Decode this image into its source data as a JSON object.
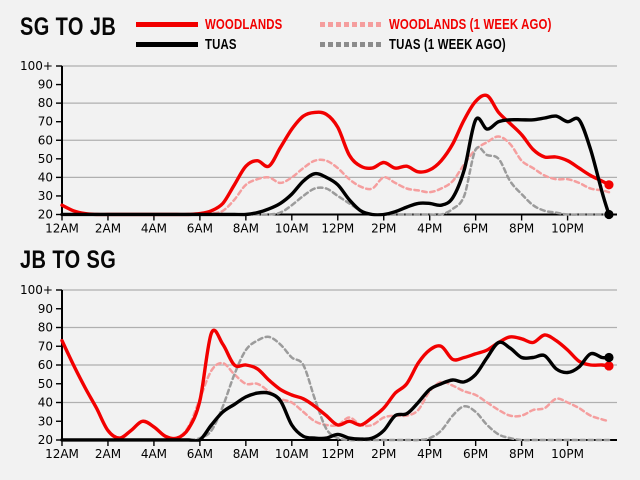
{
  "page": {
    "background": "#f2f2f2",
    "grid_color": "#b0b0b0",
    "axis_color": "#000000"
  },
  "legend": {
    "items": [
      {
        "label": "WOODLANDS",
        "line_color": "#f20000",
        "label_color": "#f20000",
        "style": "solid"
      },
      {
        "label": "WOODLANDS (1 WEEK AGO)",
        "line_color": "#f59e9e",
        "label_color": "#f20000",
        "style": "dashed"
      },
      {
        "label": "TUAS",
        "line_color": "#000000",
        "label_color": "#000000",
        "style": "solid"
      },
      {
        "label": "TUAS (1 WEEK AGO)",
        "line_color": "#8c8c8c",
        "label_color": "#000000",
        "style": "dashed"
      }
    ]
  },
  "chart_data": [
    {
      "type": "line",
      "title": "SG TO JB",
      "xlim": [
        0,
        24.15
      ],
      "ylim": [
        20,
        100
      ],
      "grid": true,
      "grid_values": [
        40,
        60,
        80,
        100
      ],
      "x_tick_hours": [
        0,
        2,
        4,
        6,
        8,
        10,
        12,
        14,
        16,
        18,
        20,
        22
      ],
      "x_tick_labels": [
        "12AM",
        "2AM",
        "4AM",
        "6AM",
        "8AM",
        "10AM",
        "12PM",
        "2PM",
        "4PM",
        "6PM",
        "8PM",
        "10PM"
      ],
      "y_ticks": [
        20,
        30,
        40,
        50,
        60,
        70,
        80,
        90,
        100
      ],
      "y_tick_labels": [
        "20",
        "30",
        "40",
        "50",
        "60",
        "70",
        "80",
        "90",
        "100+"
      ],
      "x_hours": [
        0,
        0.5,
        1,
        1.5,
        2,
        2.5,
        3,
        3.5,
        4,
        4.5,
        5,
        5.5,
        6,
        6.5,
        7,
        7.5,
        8,
        8.5,
        9,
        9.5,
        10,
        10.5,
        11,
        11.5,
        12,
        12.5,
        13,
        13.5,
        14,
        14.5,
        15,
        15.5,
        16,
        16.5,
        17,
        17.5,
        18,
        18.5,
        19,
        19.5,
        20,
        20.5,
        21,
        21.5,
        22,
        22.5,
        23,
        23.5,
        23.8
      ],
      "series": [
        {
          "name": "WOODLANDS",
          "color": "#f20000",
          "style": "solid",
          "end_dot": true,
          "values": [
            25,
            22,
            20.5,
            20,
            20,
            20,
            20,
            20,
            20,
            20,
            20,
            20,
            20.5,
            22,
            26,
            36,
            46,
            49,
            46,
            56,
            66,
            73,
            75,
            74,
            67,
            52,
            46,
            45,
            48,
            45,
            46,
            43,
            44,
            49,
            58,
            71,
            81,
            84,
            75,
            69,
            63,
            55,
            51,
            51,
            49,
            45,
            41,
            38,
            36
          ]
        },
        {
          "name": "TUAS",
          "color": "#000000",
          "style": "solid",
          "end_dot": true,
          "values": [
            20,
            20,
            20,
            20,
            20,
            20,
            20,
            20,
            20,
            20,
            20,
            20,
            20,
            20,
            20,
            20,
            20,
            21,
            23,
            26,
            31,
            38,
            42,
            40,
            36,
            28,
            22,
            20,
            20,
            21.5,
            24,
            26,
            26,
            25,
            29,
            44,
            71,
            66,
            70,
            71,
            71,
            71,
            72,
            73,
            70,
            71,
            55,
            32,
            20
          ]
        },
        {
          "name": "WOODLANDS (1 WEEK AGO)",
          "color": "#f59e9e",
          "style": "dashed",
          "end_dot": false,
          "values": [
            20,
            20,
            20,
            20,
            20,
            20,
            20,
            20,
            20,
            20,
            20,
            20,
            20,
            20.5,
            22,
            28,
            36,
            39,
            40,
            37,
            40,
            45,
            49,
            49,
            45,
            39,
            35,
            34,
            40,
            37,
            34,
            33,
            32,
            34,
            38,
            47,
            55,
            59,
            62,
            58,
            49,
            45,
            41,
            39,
            39,
            37,
            34,
            33,
            32
          ]
        },
        {
          "name": "TUAS (1 WEEK AGO)",
          "color": "#9b9b9b",
          "style": "dashed",
          "end_dot": false,
          "values": [
            20,
            20,
            20,
            20,
            20,
            20,
            20,
            20,
            20,
            20,
            20,
            20,
            20,
            20,
            20,
            20,
            20,
            20,
            20,
            21,
            25,
            30,
            34,
            34,
            30,
            26,
            22,
            20,
            20,
            20,
            20,
            20,
            20,
            20,
            23,
            30,
            55,
            52,
            50,
            38,
            31,
            25,
            22,
            21,
            20,
            20,
            20,
            20,
            20
          ]
        }
      ]
    },
    {
      "type": "line",
      "title": "JB TO SG",
      "xlim": [
        0,
        24.15
      ],
      "ylim": [
        20,
        100
      ],
      "grid": true,
      "grid_values": [
        40,
        60,
        80,
        100
      ],
      "x_tick_hours": [
        0,
        2,
        4,
        6,
        8,
        10,
        12,
        14,
        16,
        18,
        20,
        22
      ],
      "x_tick_labels": [
        "12AM",
        "2AM",
        "4AM",
        "6AM",
        "8AM",
        "10AM",
        "12PM",
        "2PM",
        "4PM",
        "6PM",
        "8PM",
        "10PM"
      ],
      "y_ticks": [
        20,
        30,
        40,
        50,
        60,
        70,
        80,
        90,
        100
      ],
      "y_tick_labels": [
        "20",
        "30",
        "40",
        "50",
        "60",
        "70",
        "80",
        "90",
        "100+"
      ],
      "x_hours": [
        0,
        0.5,
        1,
        1.5,
        2,
        2.5,
        3,
        3.5,
        4,
        4.5,
        5,
        5.5,
        6,
        6.5,
        7,
        7.5,
        8,
        8.5,
        9,
        9.5,
        10,
        10.5,
        11,
        11.5,
        12,
        12.5,
        13,
        13.5,
        14,
        14.5,
        15,
        15.5,
        16,
        16.5,
        17,
        17.5,
        18,
        18.5,
        19,
        19.5,
        20,
        20.5,
        21,
        21.5,
        22,
        22.5,
        23,
        23.5,
        23.8
      ],
      "series": [
        {
          "name": "WOODLANDS",
          "color": "#f20000",
          "style": "solid",
          "end_dot": true,
          "values": [
            73,
            60,
            48,
            37,
            25,
            21,
            25,
            30,
            27,
            22,
            21,
            26,
            41,
            77,
            71,
            60,
            60,
            58,
            52,
            47,
            44,
            42,
            38,
            33,
            28,
            30,
            28,
            32,
            37,
            45,
            50,
            61,
            68,
            70,
            63,
            64,
            66,
            68,
            72,
            75,
            74,
            72,
            76,
            73,
            68,
            62,
            60,
            60,
            59.5
          ]
        },
        {
          "name": "TUAS",
          "color": "#000000",
          "style": "solid",
          "end_dot": true,
          "values": [
            20,
            20,
            20,
            20,
            20,
            20,
            20,
            20,
            20,
            20,
            20,
            20,
            20,
            28,
            35,
            39,
            43,
            45,
            45,
            41,
            28,
            22,
            21,
            21,
            23,
            21,
            20.5,
            21,
            25,
            33,
            34,
            40,
            47,
            50,
            52,
            51,
            55,
            64,
            72,
            69,
            64,
            64,
            65,
            58,
            56,
            59,
            66,
            64,
            64
          ]
        },
        {
          "name": "WOODLANDS (1 WEEK AGO)",
          "color": "#f59e9e",
          "style": "dashed",
          "end_dot": false,
          "values": [
            20,
            20,
            20,
            20,
            20,
            20,
            20,
            20,
            20,
            20,
            21,
            27,
            42,
            57,
            61,
            55,
            50,
            50,
            46,
            42,
            40,
            35,
            30,
            28,
            28,
            32,
            28,
            28,
            32,
            33,
            33,
            36,
            46,
            51,
            49,
            46,
            44,
            40,
            36,
            33,
            33,
            36,
            37,
            42,
            40,
            37,
            33,
            31,
            30
          ]
        },
        {
          "name": "TUAS (1 WEEK AGO)",
          "color": "#9b9b9b",
          "style": "dashed",
          "end_dot": false,
          "values": [
            20,
            20,
            20,
            20,
            20,
            20,
            20,
            20,
            20,
            20,
            20,
            20,
            21,
            25,
            38,
            55,
            68,
            73,
            75,
            71,
            64,
            60,
            42,
            26,
            21,
            20,
            20,
            20,
            20,
            20,
            20,
            20,
            21,
            25,
            33,
            38,
            35,
            28,
            23,
            21,
            20,
            20,
            20,
            20,
            20,
            20,
            20,
            20,
            20
          ]
        }
      ]
    }
  ]
}
